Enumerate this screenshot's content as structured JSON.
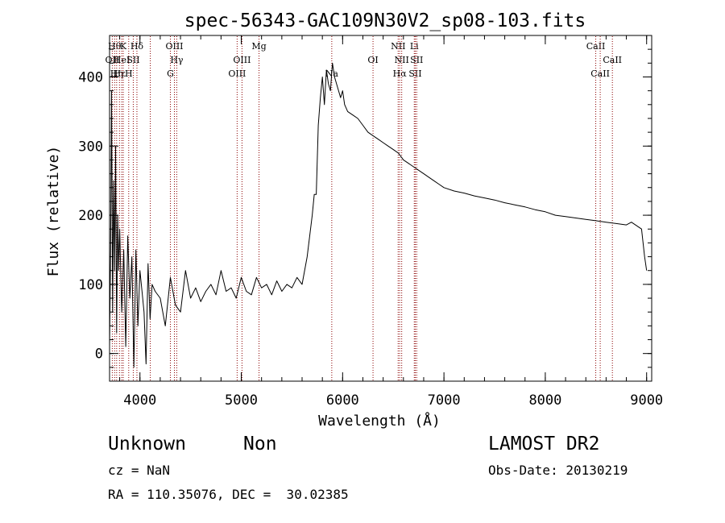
{
  "chart_data": {
    "type": "line",
    "title": "spec-56343-GAC109N30V2_sp08-103.fits",
    "xlabel": "Wavelength (Å)",
    "ylabel": "Flux (relative)",
    "xlim": [
      3700,
      9050
    ],
    "ylim": [
      -40,
      460
    ],
    "x_ticks": [
      4000,
      5000,
      6000,
      7000,
      8000,
      9000
    ],
    "x_tick_labels": [
      "4000",
      "5000",
      "6000",
      "7000",
      "8000",
      "9000"
    ],
    "y_ticks": [
      0,
      100,
      200,
      300,
      400
    ],
    "y_tick_labels": [
      "0",
      "100",
      "200",
      "300",
      "400"
    ],
    "x_minor_step": 200,
    "y_minor_step": 20,
    "grid": false,
    "line_color": "#000000",
    "marker_line_color": "#8b0000",
    "series": [
      {
        "x": [
          3700,
          3710,
          3720,
          3730,
          3740,
          3750,
          3760,
          3770,
          3780,
          3790,
          3800,
          3820,
          3840,
          3860,
          3880,
          3900,
          3920,
          3940,
          3960,
          3980,
          4000,
          4020,
          4040,
          4060,
          4080,
          4100,
          4120,
          4150,
          4200,
          4250,
          4300,
          4350,
          4400,
          4450,
          4500,
          4550,
          4600,
          4650,
          4700,
          4750,
          4800,
          4850,
          4900,
          4950,
          5000,
          5050,
          5100,
          5150,
          5200,
          5250,
          5300,
          5350,
          5400,
          5450,
          5500,
          5550,
          5600,
          5650,
          5700,
          5720,
          5740,
          5760,
          5780,
          5800,
          5820,
          5840,
          5860,
          5880,
          5900,
          5920,
          5940,
          5960,
          5980,
          6000,
          6020,
          6050,
          6100,
          6150,
          6200,
          6250,
          6300,
          6350,
          6400,
          6450,
          6500,
          6550,
          6600,
          6650,
          6700,
          6750,
          6800,
          6850,
          6900,
          6950,
          7000,
          7100,
          7200,
          7300,
          7400,
          7500,
          7600,
          7700,
          7800,
          7900,
          8000,
          8100,
          8200,
          8300,
          8400,
          8500,
          8600,
          8700,
          8800,
          8850,
          8900,
          8950,
          8980,
          9000
        ],
        "y": [
          10,
          150,
          380,
          60,
          250,
          120,
          300,
          30,
          200,
          120,
          180,
          60,
          150,
          10,
          170,
          80,
          140,
          -20,
          150,
          40,
          120,
          90,
          60,
          -15,
          130,
          50,
          100,
          90,
          80,
          40,
          110,
          70,
          60,
          120,
          80,
          95,
          75,
          90,
          100,
          85,
          120,
          90,
          95,
          80,
          110,
          90,
          85,
          110,
          95,
          100,
          85,
          105,
          90,
          100,
          95,
          110,
          100,
          140,
          200,
          230,
          230,
          330,
          370,
          400,
          360,
          410,
          390,
          380,
          420,
          400,
          390,
          380,
          370,
          380,
          360,
          350,
          345,
          340,
          330,
          320,
          315,
          310,
          305,
          300,
          295,
          290,
          280,
          275,
          270,
          265,
          260,
          255,
          250,
          245,
          240,
          235,
          232,
          228,
          225,
          222,
          218,
          215,
          212,
          208,
          205,
          200,
          198,
          196,
          194,
          192,
          190,
          188,
          186,
          190,
          185,
          180,
          140,
          120
        ]
      }
    ],
    "line_markers": [
      {
        "wavelength": 3727,
        "label": "OII",
        "row": 2
      },
      {
        "wavelength": 3750,
        "label": "Hθ",
        "row": 1
      },
      {
        "wavelength": 3770,
        "label": "Hη",
        "row": 3
      },
      {
        "wavelength": 3798,
        "label": "Hε",
        "row": 3
      },
      {
        "wavelength": 3820,
        "label": "HeI",
        "row": 2
      },
      {
        "wavelength": 3835,
        "label": "K",
        "row": 1
      },
      {
        "wavelength": 3889,
        "label": "H",
        "row": 3
      },
      {
        "wavelength": 3934,
        "label": "SII",
        "row": 2
      },
      {
        "wavelength": 3970,
        "label": "Hδ",
        "row": 1
      },
      {
        "wavelength": 4102,
        "label": "",
        "row": 0
      },
      {
        "wavelength": 4300,
        "label": "G",
        "row": 3
      },
      {
        "wavelength": 4340,
        "label": "OIII",
        "row": 1
      },
      {
        "wavelength": 4363,
        "label": "Hγ",
        "row": 2
      },
      {
        "wavelength": 4959,
        "label": "OIII",
        "row": 3
      },
      {
        "wavelength": 5007,
        "label": "OIII",
        "row": 2
      },
      {
        "wavelength": 5175,
        "label": "Mg",
        "row": 1
      },
      {
        "wavelength": 5893,
        "label": "Na",
        "row": 3
      },
      {
        "wavelength": 6300,
        "label": "OI",
        "row": 2
      },
      {
        "wavelength": 6548,
        "label": "NII",
        "row": 1
      },
      {
        "wavelength": 6563,
        "label": "Hα",
        "row": 3
      },
      {
        "wavelength": 6583,
        "label": "NII",
        "row": 2
      },
      {
        "wavelength": 6707,
        "label": "Li",
        "row": 1
      },
      {
        "wavelength": 6717,
        "label": "SII",
        "row": 3
      },
      {
        "wavelength": 6731,
        "label": "SII",
        "row": 2
      },
      {
        "wavelength": 8498,
        "label": "CaII",
        "row": 1
      },
      {
        "wavelength": 8542,
        "label": "CaII",
        "row": 3
      },
      {
        "wavelength": 8662,
        "label": "CaII",
        "row": 2
      }
    ]
  },
  "info": {
    "classification": "Unknown",
    "subclass": "Non",
    "survey": "LAMOST DR2",
    "cz": "cz = NaN",
    "obs_date": "Obs-Date: 20130219",
    "coords": "RA = 110.35076, DEC =  30.02385"
  }
}
